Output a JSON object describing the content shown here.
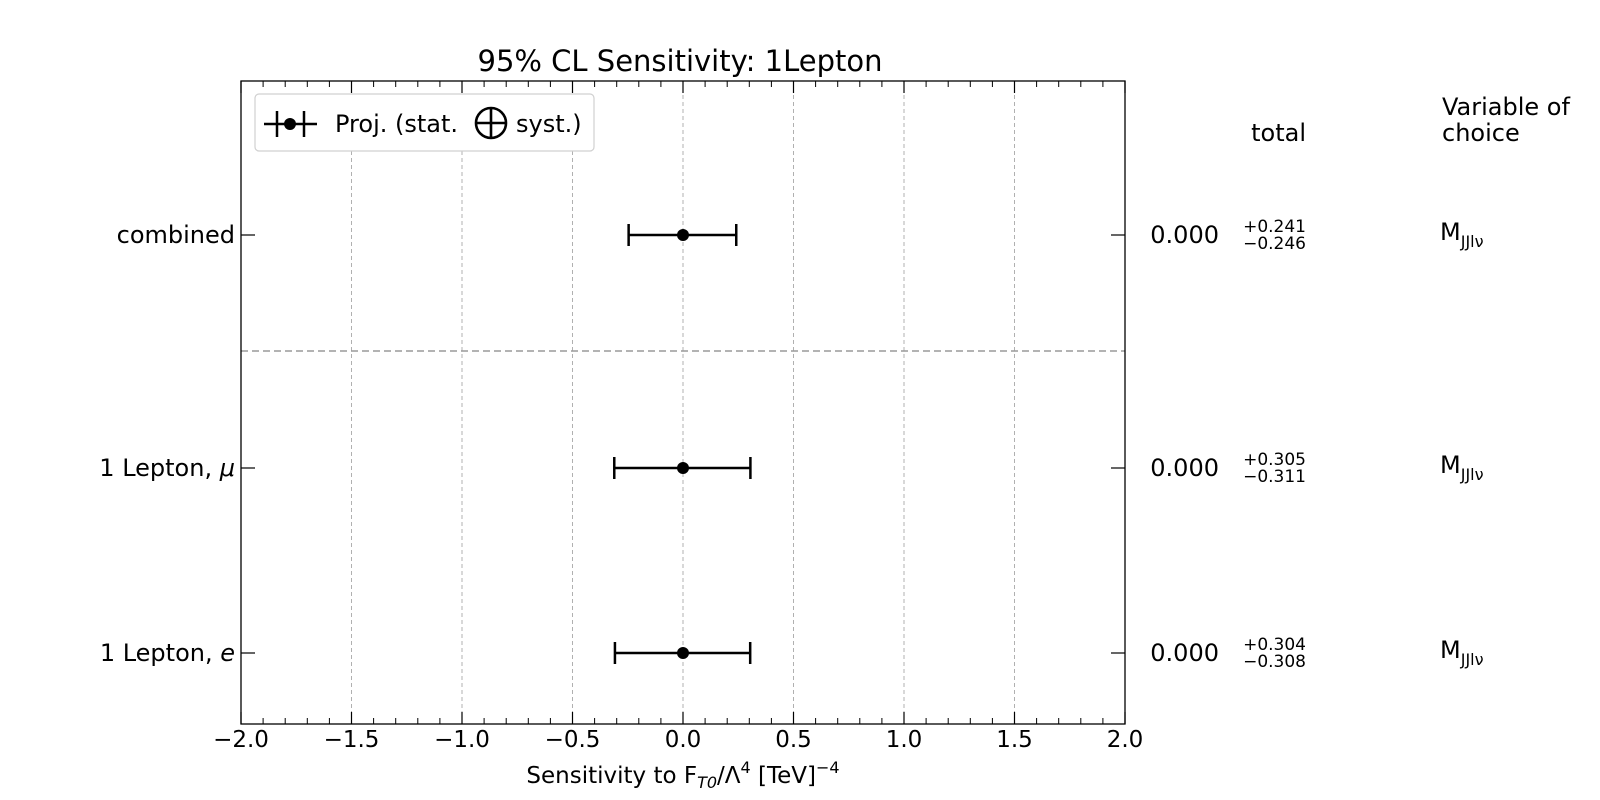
{
  "chart_data": {
    "type": "errorbar",
    "title": "95% CL Sensitivity: 1Lepton",
    "xlabel": {
      "prefix": "Sensitivity to F",
      "sub": "T0",
      "mid": "/Λ",
      "sup1": "4",
      "unit": " [TeV]",
      "sup2": "−4"
    },
    "xlim": [
      -2.0,
      2.0
    ],
    "xticks": [
      -2.0,
      -1.5,
      -1.0,
      -0.5,
      0.0,
      0.5,
      1.0,
      1.5,
      2.0
    ],
    "xtick_labels": [
      "−2.0",
      "−1.5",
      "−1.0",
      "−0.5",
      "0.0",
      "0.5",
      "1.0",
      "1.5",
      "2.0"
    ],
    "grid": "vertical dashed",
    "legend": {
      "placement": "top-left",
      "label_left": "Proj. (stat.",
      "label_right": "syst.)"
    },
    "columns": {
      "total_header": "total",
      "variable_header_line1": "Variable of",
      "variable_header_line2": "choice"
    },
    "separator_after_row": 0,
    "rows": [
      {
        "label": "combined",
        "label_italic_suffix": "",
        "center": 0.0,
        "plus": 0.241,
        "minus": 0.246,
        "center_text": "0.000",
        "plus_text": "+0.241",
        "minus_text": "−0.246",
        "variable_main": "M",
        "variable_sub": "JJlν"
      },
      {
        "label": "1 Lepton, ",
        "label_italic_suffix": "μ",
        "center": 0.0,
        "plus": 0.305,
        "minus": 0.311,
        "center_text": "0.000",
        "plus_text": "+0.305",
        "minus_text": "−0.311",
        "variable_main": "M",
        "variable_sub": "JJlν"
      },
      {
        "label": "1 Lepton, ",
        "label_italic_suffix": "e",
        "center": 0.0,
        "plus": 0.304,
        "minus": 0.308,
        "center_text": "0.000",
        "plus_text": "+0.304",
        "minus_text": "−0.308",
        "variable_main": "M",
        "variable_sub": "JJlν"
      }
    ]
  }
}
